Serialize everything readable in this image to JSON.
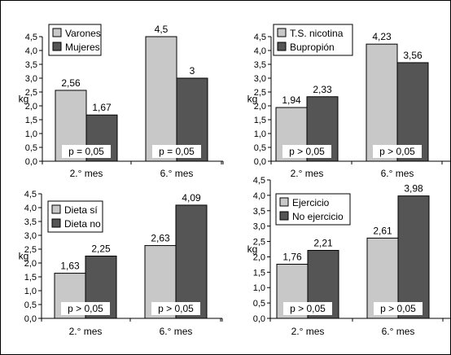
{
  "chart_data": [
    {
      "type": "bar",
      "ylabel": "kg",
      "ylim": [
        0,
        4.5
      ],
      "ytick_step": 0.5,
      "ytick_labels": [
        "0,0",
        "0,5",
        "1,0",
        "1,5",
        "2,0",
        "2,5",
        "3,0",
        "3,5",
        "4,0",
        "4,5"
      ],
      "categories": [
        "2.° mes",
        "6.° mes"
      ],
      "series": [
        {
          "name": "Varones",
          "values": [
            2.56,
            4.5
          ],
          "labels": [
            "2,56",
            "4,5"
          ],
          "color": "#c8c8c8"
        },
        {
          "name": "Mujeres",
          "values": [
            1.67,
            3.0
          ],
          "labels": [
            "1,67",
            "3"
          ],
          "color": "#555555"
        }
      ],
      "annotations": [
        "p = 0,05",
        "p = 0,05"
      ],
      "legend": "top-left",
      "grid": false
    },
    {
      "type": "bar",
      "ylabel": "kg",
      "ylim": [
        0,
        4.5
      ],
      "ytick_step": 0.5,
      "ytick_labels": [
        "0,0",
        "0,5",
        "1,0",
        "1,5",
        "2,0",
        "2,5",
        "3,0",
        "3,5",
        "4,0",
        "4,5"
      ],
      "categories": [
        "2.° mes",
        "6.° mes"
      ],
      "series": [
        {
          "name": "T.S. nicotina",
          "values": [
            1.94,
            4.23
          ],
          "labels": [
            "1,94",
            "4,23"
          ],
          "color": "#c8c8c8"
        },
        {
          "name": "Bupropión",
          "values": [
            2.33,
            3.56
          ],
          "labels": [
            "2,33",
            "3,56"
          ],
          "color": "#555555"
        }
      ],
      "annotations": [
        "p > 0,05",
        "p > 0,05"
      ],
      "legend": "top-left",
      "grid": false
    },
    {
      "type": "bar",
      "ylabel": "kg",
      "ylim": [
        0,
        4.5
      ],
      "ytick_step": 0.5,
      "ytick_labels": [
        "0,0",
        "0,5",
        "1,0",
        "1,5",
        "2,0",
        "2,5",
        "3,0",
        "3,5",
        "4,0",
        "4,5"
      ],
      "categories": [
        "2.° mes",
        "6.° mes"
      ],
      "series": [
        {
          "name": "Dieta sí",
          "values": [
            1.63,
            2.63
          ],
          "labels": [
            "1,63",
            "2,63"
          ],
          "color": "#c8c8c8"
        },
        {
          "name": "Dieta no",
          "values": [
            2.25,
            4.09
          ],
          "labels": [
            "2,25",
            "4,09"
          ],
          "color": "#555555"
        }
      ],
      "annotations": [
        "p > 0,05",
        "p > 0,05"
      ],
      "legend": "top-left",
      "grid": false
    },
    {
      "type": "bar",
      "ylabel": "kg",
      "ylim": [
        0,
        4.5
      ],
      "ytick_step": 0.5,
      "ytick_labels": [
        "0,0",
        "0,5",
        "1,0",
        "1,5",
        "2,0",
        "2,5",
        "3,0",
        "3,5",
        "4,0",
        "4,5"
      ],
      "categories": [
        "2.° mes",
        "6.° mes"
      ],
      "series": [
        {
          "name": "Ejercicio",
          "values": [
            1.76,
            2.61
          ],
          "labels": [
            "1,76",
            "2,61"
          ],
          "color": "#c8c8c8"
        },
        {
          "name": "No ejercicio",
          "values": [
            2.21,
            3.98
          ],
          "labels": [
            "2,21",
            "3,98"
          ],
          "color": "#555555"
        }
      ],
      "annotations": [
        "p > 0,05",
        "p > 0,05"
      ],
      "legend": "top-left",
      "grid": false
    }
  ]
}
